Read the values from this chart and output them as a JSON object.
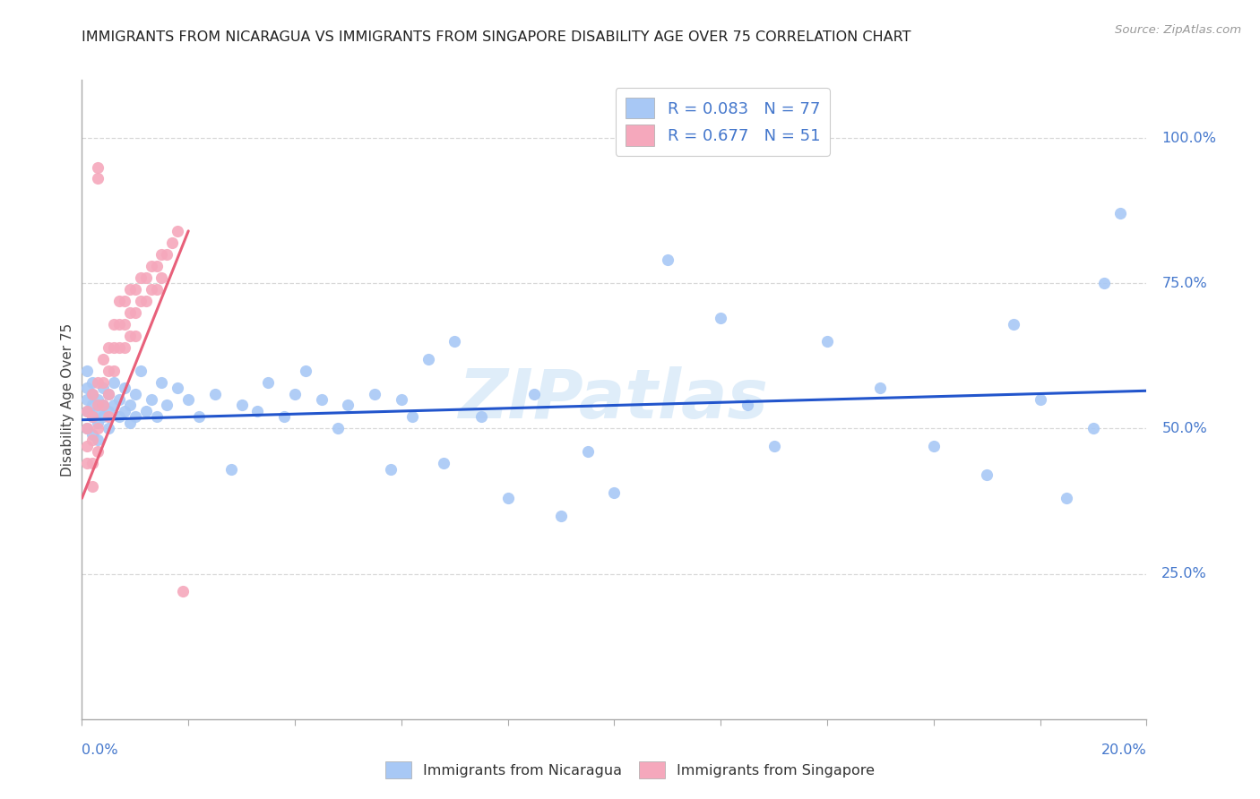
{
  "title": "IMMIGRANTS FROM NICARAGUA VS IMMIGRANTS FROM SINGAPORE DISABILITY AGE OVER 75 CORRELATION CHART",
  "source": "Source: ZipAtlas.com",
  "ylabel": "Disability Age Over 75",
  "watermark": "ZIPatlas",
  "nicaragua_color": "#a8c8f5",
  "singapore_color": "#f5a8bc",
  "nicaragua_line_color": "#2255cc",
  "singapore_line_color": "#e8607a",
  "background_color": "#ffffff",
  "grid_color": "#d8d8d8",
  "axis_label_color": "#4477cc",
  "title_color": "#222222",
  "ylim_min": 0.0,
  "ylim_max": 1.1,
  "xlim_min": 0.0,
  "xlim_max": 0.2,
  "ytick_vals": [
    0.25,
    0.5,
    0.75,
    1.0
  ],
  "ytick_labels": [
    "25.0%",
    "50.0%",
    "75.0%",
    "100.0%"
  ],
  "nicaragua_x": [
    0.001,
    0.001,
    0.001,
    0.001,
    0.001,
    0.002,
    0.002,
    0.002,
    0.002,
    0.002,
    0.003,
    0.003,
    0.003,
    0.003,
    0.004,
    0.004,
    0.004,
    0.005,
    0.005,
    0.005,
    0.006,
    0.006,
    0.007,
    0.007,
    0.008,
    0.008,
    0.009,
    0.009,
    0.01,
    0.01,
    0.011,
    0.012,
    0.013,
    0.014,
    0.015,
    0.016,
    0.018,
    0.02,
    0.022,
    0.025,
    0.028,
    0.03,
    0.033,
    0.035,
    0.038,
    0.04,
    0.042,
    0.045,
    0.048,
    0.05,
    0.055,
    0.058,
    0.06,
    0.062,
    0.065,
    0.068,
    0.07,
    0.075,
    0.08,
    0.085,
    0.09,
    0.095,
    0.1,
    0.11,
    0.12,
    0.125,
    0.13,
    0.14,
    0.15,
    0.16,
    0.17,
    0.175,
    0.18,
    0.185,
    0.19,
    0.192,
    0.195
  ],
  "nicaragua_y": [
    0.53,
    0.55,
    0.57,
    0.5,
    0.6,
    0.52,
    0.54,
    0.56,
    0.49,
    0.58,
    0.51,
    0.53,
    0.55,
    0.48,
    0.52,
    0.54,
    0.57,
    0.5,
    0.53,
    0.56,
    0.54,
    0.58,
    0.52,
    0.55,
    0.53,
    0.57,
    0.51,
    0.54,
    0.52,
    0.56,
    0.6,
    0.53,
    0.55,
    0.52,
    0.58,
    0.54,
    0.57,
    0.55,
    0.52,
    0.56,
    0.43,
    0.54,
    0.53,
    0.58,
    0.52,
    0.56,
    0.6,
    0.55,
    0.5,
    0.54,
    0.56,
    0.43,
    0.55,
    0.52,
    0.62,
    0.44,
    0.65,
    0.52,
    0.38,
    0.56,
    0.35,
    0.46,
    0.39,
    0.79,
    0.69,
    0.54,
    0.47,
    0.65,
    0.57,
    0.47,
    0.42,
    0.68,
    0.55,
    0.38,
    0.5,
    0.75,
    0.87
  ],
  "singapore_x": [
    0.001,
    0.001,
    0.001,
    0.001,
    0.002,
    0.002,
    0.002,
    0.002,
    0.002,
    0.003,
    0.003,
    0.003,
    0.003,
    0.003,
    0.003,
    0.004,
    0.004,
    0.004,
    0.005,
    0.005,
    0.005,
    0.005,
    0.006,
    0.006,
    0.006,
    0.007,
    0.007,
    0.007,
    0.008,
    0.008,
    0.008,
    0.009,
    0.009,
    0.009,
    0.01,
    0.01,
    0.01,
    0.011,
    0.011,
    0.012,
    0.012,
    0.013,
    0.013,
    0.014,
    0.014,
    0.015,
    0.015,
    0.016,
    0.017,
    0.018,
    0.019
  ],
  "singapore_y": [
    0.53,
    0.5,
    0.47,
    0.44,
    0.52,
    0.48,
    0.56,
    0.44,
    0.4,
    0.58,
    0.54,
    0.5,
    0.95,
    0.93,
    0.46,
    0.62,
    0.58,
    0.54,
    0.64,
    0.6,
    0.56,
    0.52,
    0.68,
    0.64,
    0.6,
    0.72,
    0.68,
    0.64,
    0.72,
    0.68,
    0.64,
    0.74,
    0.7,
    0.66,
    0.74,
    0.7,
    0.66,
    0.76,
    0.72,
    0.76,
    0.72,
    0.78,
    0.74,
    0.78,
    0.74,
    0.8,
    0.76,
    0.8,
    0.82,
    0.84,
    0.22
  ],
  "nic_line_x": [
    0.0,
    0.2
  ],
  "nic_line_y": [
    0.515,
    0.565
  ],
  "sing_line_x": [
    0.0,
    0.02
  ],
  "sing_line_y": [
    0.38,
    0.84
  ]
}
